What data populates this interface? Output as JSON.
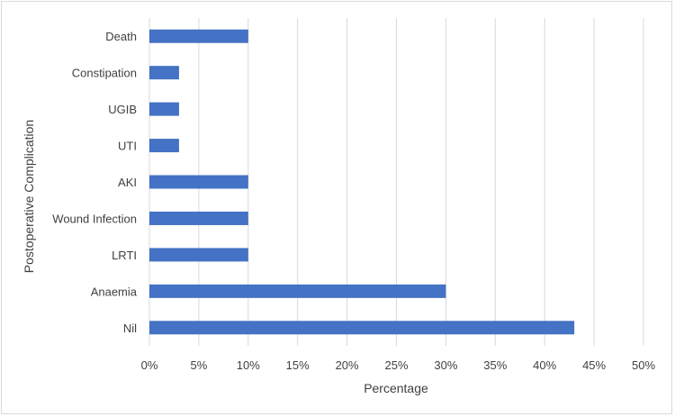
{
  "chart_data": {
    "type": "bar",
    "orientation": "horizontal",
    "categories": [
      "Death",
      "Constipation",
      "UGIB",
      "UTI",
      "AKI",
      "Wound Infection",
      "LRTI",
      "Anaemia",
      "Nil"
    ],
    "values": [
      10,
      3,
      3,
      3,
      10,
      10,
      10,
      30,
      43
    ],
    "value_unit": "%",
    "xlabel": "Percentage",
    "ylabel": "Postoperative Complication",
    "xlim": [
      0,
      50
    ],
    "xticks": [
      "0%",
      "5%",
      "10%",
      "15%",
      "20%",
      "25%",
      "30%",
      "35%",
      "40%",
      "45%",
      "50%"
    ],
    "grid": "vertical",
    "legend": "none",
    "bar_color": "#4472c4",
    "grid_color": "#d9d9d9"
  }
}
